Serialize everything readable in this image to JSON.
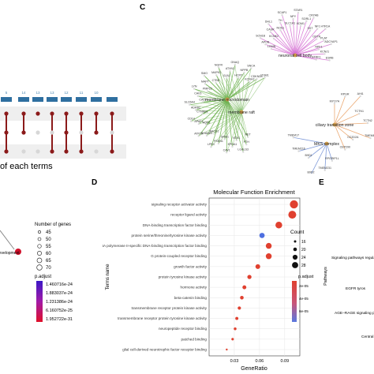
{
  "panel_labels": {
    "c": "C",
    "d": "D",
    "e": "E"
  },
  "upset": {
    "caption": "of each terms",
    "top_values": [
      "5",
      "14",
      "13",
      "13",
      "12",
      "11",
      "10"
    ]
  },
  "legend_left": {
    "node_label": "development",
    "size_title": "Number of genes",
    "sizes": [
      "45",
      "50",
      "55",
      "60",
      "65",
      "70"
    ],
    "color_title": "p.adjust",
    "color_ticks": [
      "1.460716e-24",
      "1.883037e-24",
      "1.231386e-24",
      "6.160752e-25",
      "1.952722e-31"
    ]
  },
  "network": {
    "hubs": [
      "neuronal cell body",
      "membrane microdomain",
      "membrane raft",
      "ciliary transition zone",
      "MKS complex"
    ],
    "genes_top": [
      "LGMN",
      "APOB",
      "SCN1B",
      "KCNK2",
      "CASR",
      "DHL1",
      "NOS1",
      "TH",
      "SCAP1",
      "SLC1A1",
      "NPY",
      "STAR1",
      "KDM1",
      "SORL1",
      "CRYAB",
      "SST",
      "NF1",
      "HTR1A",
      "OXTR",
      "PLAT",
      "ADCYAP1",
      "NPF1",
      "KCNJ1",
      "ESRB",
      "NTRK1"
    ],
    "genes_mid": [
      "RET",
      "PTH",
      "LGALS3",
      "NTK1",
      "EPHA1",
      "CAV1",
      "GRM1",
      "PSEN1",
      "LPR1",
      "BACE1",
      "SHANK1",
      "ATP7A",
      "AQP6",
      "APAF1",
      "CD14",
      "CTNNB1",
      "ADRB2",
      "SLC6A4",
      "CAV2",
      "CAV3",
      "LYN",
      "PMP22",
      "MAPT",
      "SMO",
      "CTBD",
      "MAPK1",
      "NGFR",
      "GJA1",
      "ATXN1",
      "GNAQ",
      "HCRT",
      "NPPB",
      "SNCA",
      "KCNH2",
      "CDKN2A",
      "ITGB1"
    ],
    "genes_right": [
      "MYO7A",
      "RPGR",
      "AHI1",
      "TCTN1",
      "TCTN2",
      "TMEM67",
      "CC2D2A",
      "CEP290",
      "RPGRIP1L",
      "TMEM231",
      "B9D2",
      "B9D1",
      "TMEM216",
      "TMEM17"
    ]
  },
  "dotplot": {
    "title": "Molecular Function Enrichment",
    "xlabel": "GeneRatio",
    "ylabel": "Terms name",
    "xticks": [
      "0.03",
      "0.06",
      "0.09"
    ],
    "count_title": "Count",
    "count_sizes": [
      "16",
      "20",
      "24",
      "28"
    ],
    "padj_title": "p.adjust",
    "padj_ticks": [
      "2e-05",
      "4e-05",
      "6e-05"
    ]
  },
  "chart_data": {
    "type": "scatter",
    "title": "Molecular Function Enrichment",
    "xlabel": "GeneRatio",
    "ylabel": "Terms name",
    "xlim": [
      0.0,
      0.108
    ],
    "categories": [
      "signaling receptor activator activity",
      "receptor ligand activity",
      "DNA-binding transcription factor binding",
      "protein serine/threonine/tyrosine kinase activity",
      "RNA polymerase II-specific DNA-binding transcription factor binding",
      "G protein-coupled receptor binding",
      "growth factor activity",
      "protein tyrosine kinase activity",
      "hormone activity",
      "beta-catenin binding",
      "transmembrane receptor protein kinase activity",
      "transmembrane receptor protein tyrosine kinase activity",
      "neuropeptide receptor binding",
      "patched binding",
      "glial cell-derived neurotrophic factor receptor binding"
    ],
    "series": [
      {
        "x": [
          0.101,
          0.099,
          0.083,
          0.063,
          0.071,
          0.071,
          0.058,
          0.048,
          0.042,
          0.039,
          0.036,
          0.033,
          0.031,
          0.028,
          0.021
        ],
        "count": [
          30,
          29,
          25,
          20,
          22,
          22,
          18,
          16,
          15,
          14,
          13,
          12,
          11,
          10,
          8
        ],
        "colors": [
          "#e0402f",
          "#e0402f",
          "#e0402f",
          "#4e6fe0",
          "#e0402f",
          "#e0402f",
          "#e0402f",
          "#e0402f",
          "#e0402f",
          "#e0402f",
          "#e0402f",
          "#e0402f",
          "#e0402f",
          "#e0402f",
          "#e0402f"
        ]
      }
    ]
  },
  "colors": {
    "upset_bar": "#2f6fa0",
    "upset_dot": "#8b1a1a",
    "green_edge": "#6ab04c",
    "pink_edge": "#d36ad1",
    "blue_edge": "#6a8ad3",
    "orange_edge": "#e89a5a",
    "dot_red": "#e0402f",
    "dot_blue": "#4e6fe0"
  }
}
